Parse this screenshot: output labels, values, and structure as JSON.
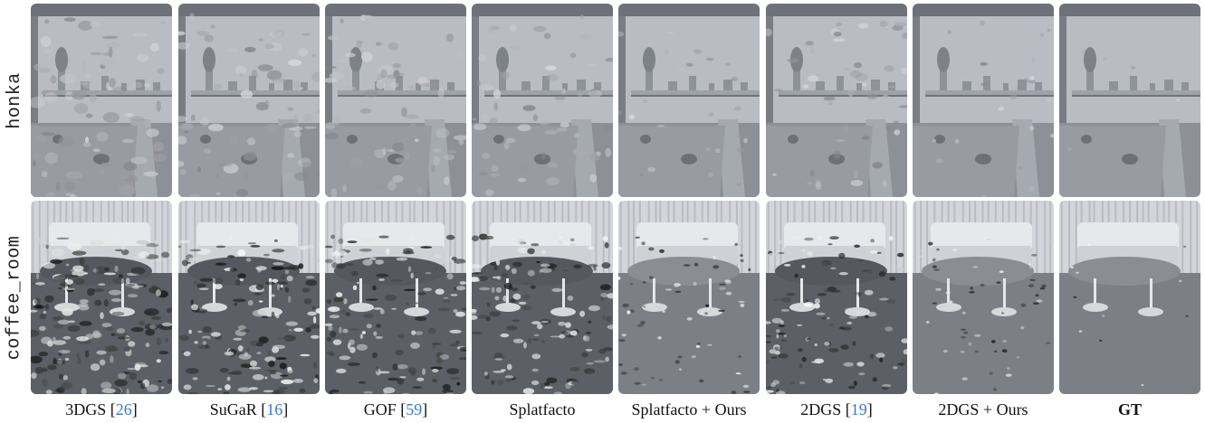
{
  "rows": [
    {
      "label": "honka"
    },
    {
      "label": "coffee_room"
    }
  ],
  "methods": [
    {
      "name": "3DGS",
      "ref": "26",
      "bold": false,
      "noise": 0.85
    },
    {
      "name": "SuGaR",
      "ref": "16",
      "bold": false,
      "noise": 0.75
    },
    {
      "name": "GOF",
      "ref": "59",
      "bold": false,
      "noise": 0.7
    },
    {
      "name": "Splatfacto",
      "ref": "",
      "bold": false,
      "noise": 0.65
    },
    {
      "name": "Splatfacto + Ours",
      "ref": "",
      "bold": false,
      "noise": 0.3
    },
    {
      "name": "2DGS",
      "ref": "19",
      "bold": false,
      "noise": 0.55
    },
    {
      "name": "2DGS + Ours",
      "ref": "",
      "bold": false,
      "noise": 0.25
    },
    {
      "name": "GT",
      "ref": "",
      "bold": true,
      "noise": 0.05
    }
  ],
  "colors": {
    "ref": "#3b78c9",
    "wall": "#b9bcc3",
    "floor": "#8d9096",
    "dark": "#2e3035"
  }
}
